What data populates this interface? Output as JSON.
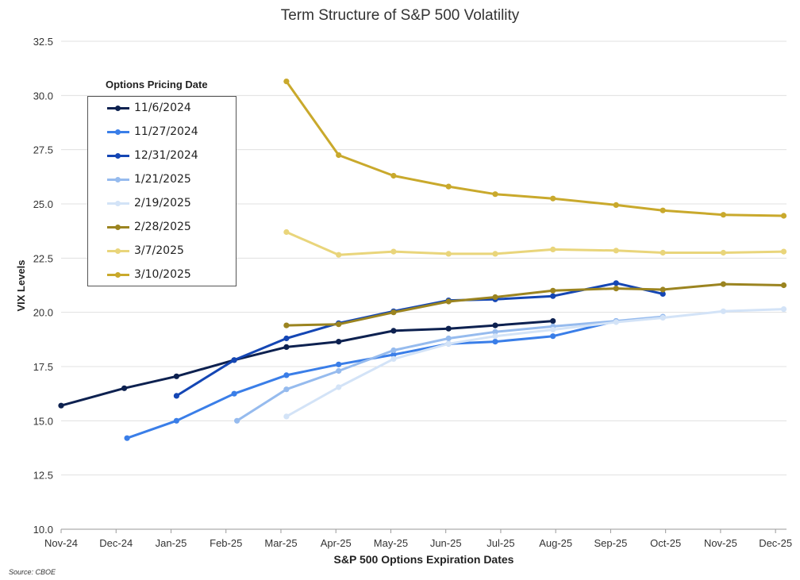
{
  "chart_data": {
    "type": "line",
    "title": "Term Structure of S&P 500 Volatility",
    "xlabel": "S&P 500 Options Expiration Dates",
    "ylabel": "VIX Levels",
    "ylim": [
      10.0,
      32.5
    ],
    "y_ticks": [
      "10.0",
      "12.5",
      "15.0",
      "17.5",
      "20.0",
      "22.5",
      "25.0",
      "27.5",
      "30.0",
      "32.5"
    ],
    "categories": [
      "Nov-24",
      "Dec-24",
      "Jan-25",
      "Feb-25",
      "Mar-25",
      "Apr-25",
      "May-25",
      "Jun-25",
      "Jul-25",
      "Aug-25",
      "Sep-25",
      "Oct-25",
      "Nov-25",
      "Dec-25"
    ],
    "x_range": [
      0,
      13.2
    ],
    "legend_title": "Options Pricing Date",
    "legend_position": "top-left",
    "grid": true,
    "source": "Source: CBOE",
    "series": [
      {
        "name": "11/6/2024",
        "color": "#0d2150",
        "x": [
          0,
          1.15,
          2.1,
          3.15,
          4.1,
          5.05,
          6.05,
          7.05,
          7.9,
          8.95
        ],
        "values": [
          15.7,
          16.5,
          17.05,
          17.8,
          18.4,
          18.65,
          19.15,
          19.25,
          19.4,
          19.6
        ]
      },
      {
        "name": "11/27/2024",
        "color": "#3a7ee8",
        "x": [
          1.2,
          2.1,
          3.15,
          4.1,
          5.05,
          6.05,
          7.05,
          7.9,
          8.95,
          10.1
        ],
        "values": [
          14.2,
          15.0,
          16.25,
          17.1,
          17.6,
          18.05,
          18.55,
          18.65,
          18.9,
          19.6
        ]
      },
      {
        "name": "12/31/2024",
        "color": "#1446b4",
        "x": [
          2.1,
          3.15,
          4.1,
          5.05,
          6.05,
          7.05,
          7.9,
          8.95,
          10.1,
          10.95
        ],
        "values": [
          16.15,
          17.8,
          18.8,
          19.5,
          20.05,
          20.55,
          20.6,
          20.75,
          21.35,
          20.85
        ]
      },
      {
        "name": "1/21/2025",
        "color": "#96bbee",
        "x": [
          3.2,
          4.1,
          5.05,
          6.05,
          7.05,
          7.9,
          8.95,
          10.1,
          10.95
        ],
        "values": [
          15.0,
          16.45,
          17.3,
          18.25,
          18.8,
          19.1,
          19.35,
          19.6,
          19.8
        ]
      },
      {
        "name": "2/19/2025",
        "color": "#d3e3f7",
        "x": [
          4.1,
          5.05,
          6.05,
          7.05,
          7.9,
          8.95,
          10.1,
          10.95,
          12.05,
          13.15
        ],
        "values": [
          15.2,
          16.55,
          17.85,
          18.55,
          18.9,
          19.2,
          19.55,
          19.75,
          20.05,
          20.15
        ]
      },
      {
        "name": "2/28/2025",
        "color": "#9b8420",
        "x": [
          4.1,
          5.05,
          6.05,
          7.05,
          7.9,
          8.95,
          10.1,
          10.95,
          12.05,
          13.15
        ],
        "values": [
          19.4,
          19.45,
          20.0,
          20.5,
          20.7,
          21.0,
          21.1,
          21.05,
          21.3,
          21.25
        ]
      },
      {
        "name": "3/7/2025",
        "color": "#e9d57b",
        "x": [
          4.1,
          5.05,
          6.05,
          7.05,
          7.9,
          8.95,
          10.1,
          10.95,
          12.05,
          13.15
        ],
        "values": [
          23.7,
          22.65,
          22.8,
          22.7,
          22.7,
          22.9,
          22.85,
          22.75,
          22.75,
          22.8
        ]
      },
      {
        "name": "3/10/2025",
        "color": "#c9a92c",
        "x": [
          4.1,
          5.05,
          6.05,
          7.05,
          7.9,
          8.95,
          10.1,
          10.95,
          12.05,
          13.15
        ],
        "values": [
          30.65,
          27.25,
          26.3,
          25.8,
          25.45,
          25.25,
          24.95,
          24.7,
          24.5,
          24.45
        ]
      }
    ]
  }
}
